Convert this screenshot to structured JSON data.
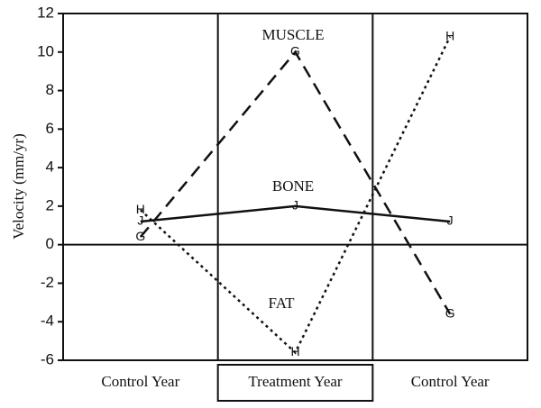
{
  "chart_data": {
    "type": "line",
    "y_label": "Velocity (mm/yr)",
    "categories": [
      "Control Year",
      "Treatment Year",
      "Control Year"
    ],
    "series": [
      {
        "name": "MUSCLE",
        "marker": "G",
        "color": "#111",
        "dash": "dashed",
        "values": [
          0.4,
          10,
          -3.6
        ]
      },
      {
        "name": "BONE",
        "marker": "J",
        "color": "#111",
        "dash": "solid",
        "values": [
          1.2,
          2,
          1.2
        ]
      },
      {
        "name": "FAT",
        "marker": "H",
        "color": "#111",
        "dash": "dotted",
        "values": [
          1.8,
          -5.6,
          10.8
        ]
      }
    ],
    "ylim": [
      -6,
      12
    ],
    "yticks": [
      -6,
      -4,
      -2,
      0,
      2,
      4,
      6,
      8,
      10,
      12
    ]
  }
}
